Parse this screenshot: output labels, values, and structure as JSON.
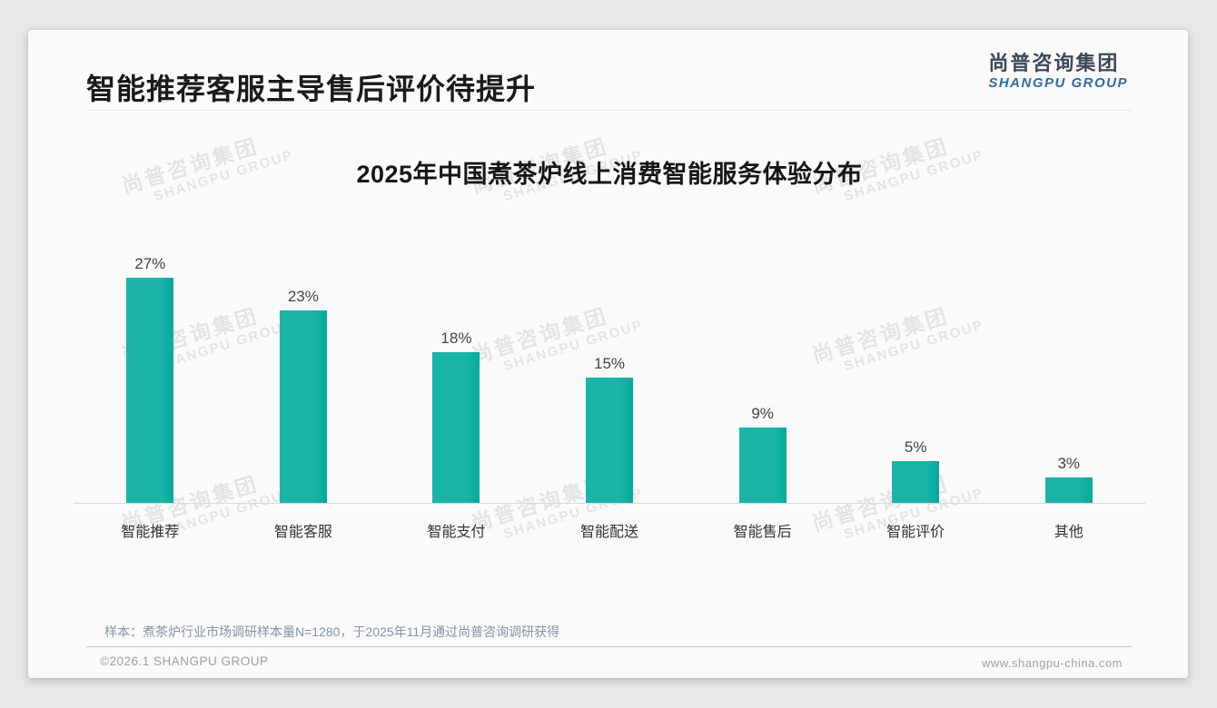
{
  "header": {
    "title": "智能推荐客服主导售后评价待提升",
    "logo": {
      "cn": "尚普咨询集团",
      "en": "SHANGPU GROUP"
    }
  },
  "watermark": {
    "cn": "尚普咨询集团",
    "en": "SHANGPU GROUP"
  },
  "chart_data": {
    "type": "bar",
    "title": "2025年中国煮茶炉线上消费智能服务体验分布",
    "categories": [
      "智能推荐",
      "智能客服",
      "智能支付",
      "智能配送",
      "智能售后",
      "智能评价",
      "其他"
    ],
    "values": [
      27,
      23,
      18,
      15,
      9,
      5,
      3
    ],
    "value_suffix": "%",
    "bar_color": "#1bb4a9",
    "ylim": [
      0,
      30
    ],
    "grid": false,
    "legend": "none",
    "xlabel": "",
    "ylabel": ""
  },
  "footer": {
    "note": "样本：煮茶炉行业市场调研样本量N=1280，于2025年11月通过尚普咨询调研获得",
    "copyright": "©2026.1 SHANGPU GROUP",
    "website": "www.shangpu-china.com"
  }
}
